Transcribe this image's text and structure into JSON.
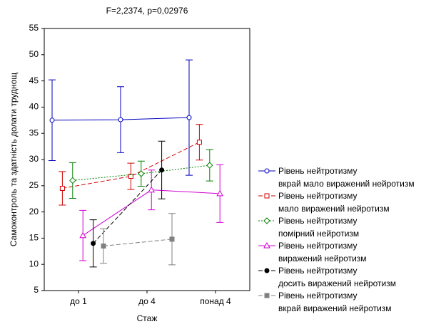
{
  "chart_data": {
    "type": "line",
    "title": "F=2,2374, p=0,02976",
    "x_label": "Стаж",
    "y_label": "Самоконтроль та здатність долати труднощ",
    "categories": [
      "до 1",
      "до 4",
      "понад 4"
    ],
    "ylim": [
      5,
      55
    ],
    "yticks": [
      5,
      10,
      15,
      20,
      25,
      30,
      35,
      40,
      45,
      50,
      55
    ],
    "series": [
      {
        "name": "Рівень нейтротизму\nвкрай мало виражений нейротизм",
        "color": "#0000c0",
        "dash": "solid",
        "marker": "circle",
        "values": [
          37.5,
          37.6,
          38.0
        ],
        "errors": [
          7.7,
          6.3,
          11.0
        ]
      },
      {
        "name": "Рівень нейтротизму\nмало виражений нейротизм",
        "color": "#d00000",
        "dash": "dashed",
        "marker": "square",
        "values": [
          24.5,
          26.8,
          33.3
        ],
        "errors": [
          3.2,
          2.5,
          3.4
        ]
      },
      {
        "name": "Рівень нейтротизму\nпомірний нейротизм",
        "color": "#008000",
        "dash": "dotted",
        "marker": "diamond",
        "values": [
          26.0,
          27.3,
          28.9
        ],
        "errors": [
          3.4,
          2.4,
          3.0
        ]
      },
      {
        "name": "Рівень нейтротизму\nвиражений нейротизм",
        "color": "#d000d0",
        "dash": "solid",
        "marker": "triangle",
        "values": [
          15.5,
          24.2,
          23.5
        ],
        "errors": [
          4.8,
          3.8,
          5.5
        ]
      },
      {
        "name": "Рівень нейтротизму\nдосить виражений нейротизм",
        "color": "#000000",
        "dash": "dashed",
        "marker": "dot",
        "values": [
          14.0,
          28.0,
          null
        ],
        "errors": [
          4.5,
          5.5,
          null
        ]
      },
      {
        "name": "Рівень нейтротизму\nвкрай виражений нейротизм",
        "color": "#808080",
        "dash": "dashed",
        "marker": "filledsquare",
        "values": [
          13.5,
          14.8,
          null
        ],
        "errors": [
          3.3,
          4.9,
          null
        ]
      }
    ]
  }
}
